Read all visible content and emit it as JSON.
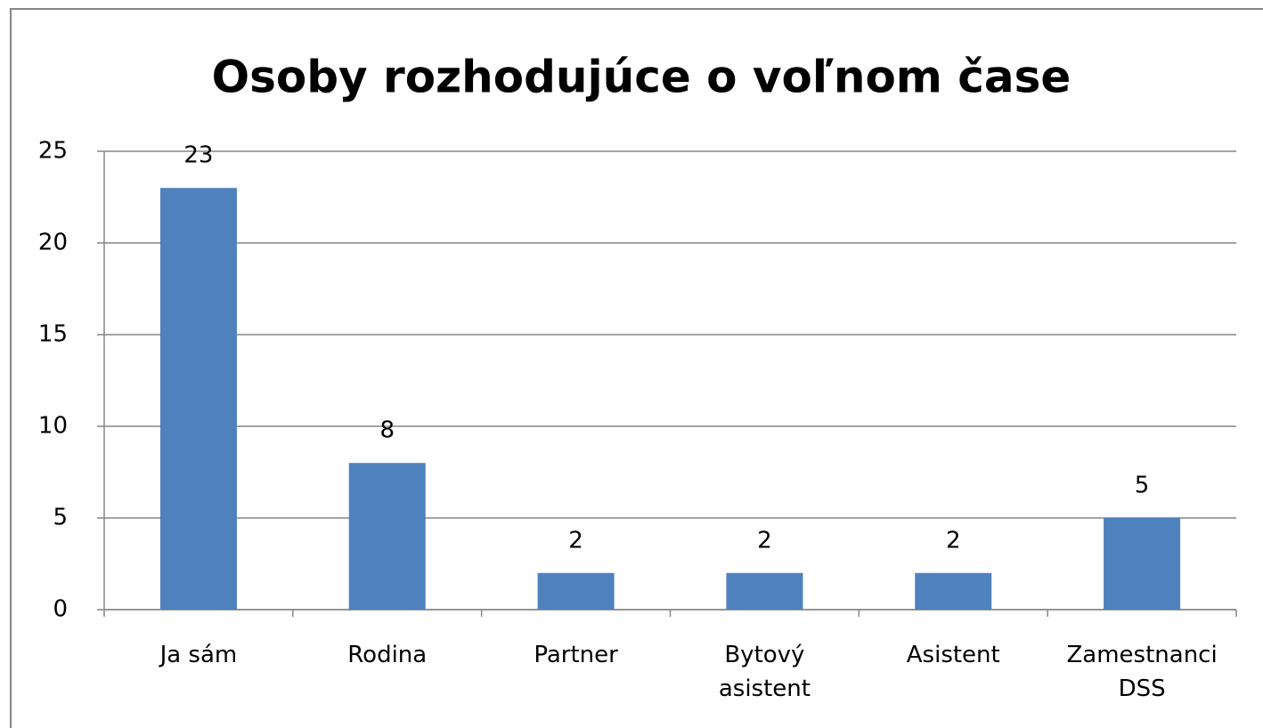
{
  "chart_data": {
    "type": "bar",
    "title": "Osoby rozhodujúce o voľnom čase",
    "categories": [
      "Ja sám",
      "Rodina",
      "Partner",
      "Bytový asistent",
      "Asistent",
      "Zamestnanci DSS"
    ],
    "values": [
      23,
      8,
      2,
      2,
      2,
      5
    ],
    "color": "#4f81bd",
    "ylim": [
      0,
      25
    ],
    "yticks": [
      0,
      5,
      10,
      15,
      20,
      25
    ],
    "grid": true
  }
}
